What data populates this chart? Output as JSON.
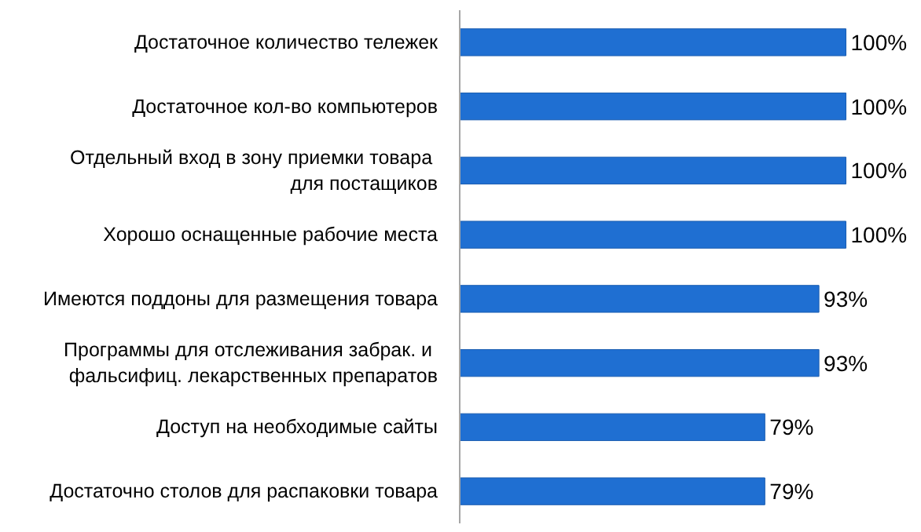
{
  "chart_data": {
    "type": "bar",
    "orientation": "horizontal",
    "categories": [
      "Достаточное количество тележек",
      "Достаточное кол-во компьютеров",
      "Отдельный вход в  зону приемки товара\nдля постащиков",
      "Хорошо оснащенные рабочие места",
      "Имеются поддоны для размещения товара",
      "Программы для  отслеживания забрак. и\nфальсифиц. лекарственных препаратов",
      "Доступ на необходимые сайты",
      "Достаточно столов для распаковки товара"
    ],
    "values": [
      100,
      100,
      100,
      100,
      93,
      93,
      79,
      79
    ],
    "value_labels": [
      "100%",
      "100%",
      "100%",
      "100%",
      "93%",
      "93%",
      "79%",
      "79%"
    ],
    "color": "#1f6fd2",
    "grid": false
  }
}
